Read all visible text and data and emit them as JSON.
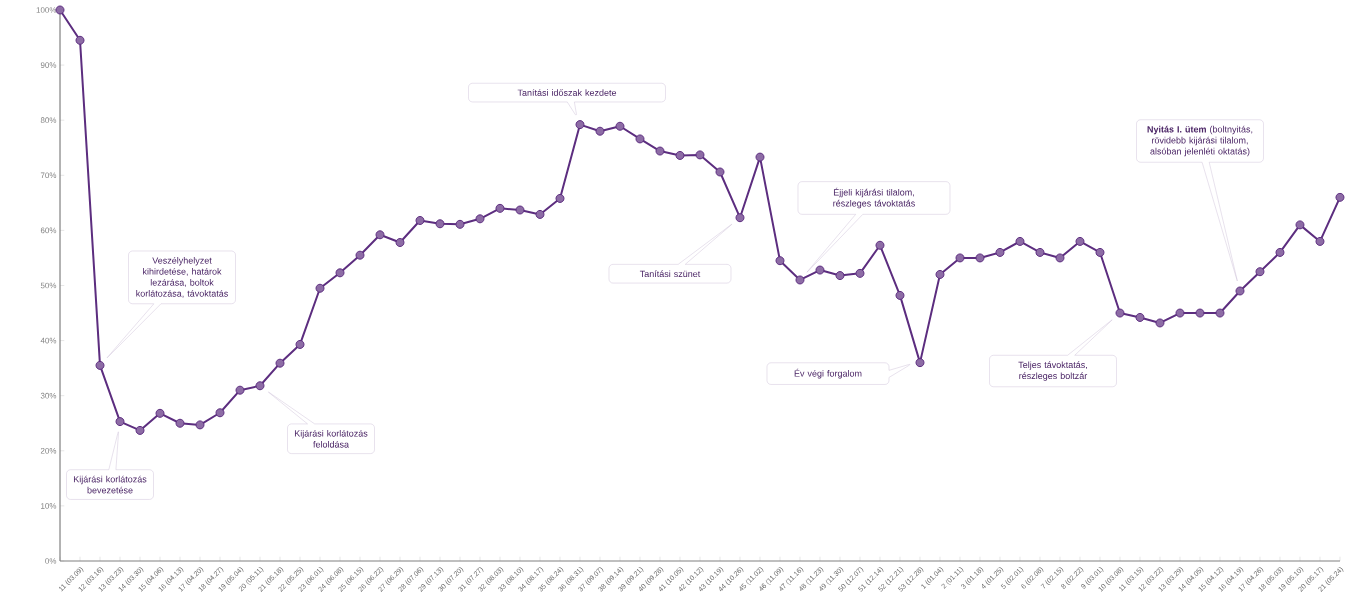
{
  "chart_data": {
    "type": "line",
    "categories": [
      null,
      "11 (03.09)",
      "12 (03.16)",
      "13 (03.23)",
      "14 (03.30)",
      "15 (04.06)",
      "16 (04.13)",
      "17 (04.20)",
      "18 (04.27)",
      "19 (05.04)",
      "20 (05.11)",
      "21 (05.18)",
      "22 (05.25)",
      "23 (06.01)",
      "24 (06.08)",
      "25 (06.15)",
      "26 (06.22)",
      "27 (06.29)",
      "28 (07.06)",
      "29 (07.13)",
      "30 (07.20)",
      "31 (07.27)",
      "32 (08.03)",
      "33 (08.10)",
      "34 (08.17)",
      "35 (08.24)",
      "36 (08.31)",
      "37 (09.07)",
      "38 (09.14)",
      "39 (09.21)",
      "40 (09.28)",
      "41 (10.05)",
      "42 (10.12)",
      "43 (10.19)",
      "44 (10.26)",
      "45 (11.02)",
      "46 (11.09)",
      "47 (11.16)",
      "48 (11.23)",
      "49 (11.30)",
      "50 (12.07)",
      "51 (12.14)",
      "52 (12.21)",
      "53 (12.28)",
      "1 (01.04)",
      "2 (01.11)",
      "3 (01.18)",
      "4 (01.25)",
      "5 (02.01)",
      "6 (02.08)",
      "7 (02.15)",
      "8 (02.22)",
      "9 (03.01)",
      "10 (03.08)",
      "11 (03.15)",
      "12 (03.22)",
      "13 (03.29)",
      "14 (04.05)",
      "15 (04.12)",
      "16 (04.19)",
      "17 (04.26)",
      "18 (05.03)",
      "19 (05.10)",
      "20 (05.17)",
      "21 (05.24)"
    ],
    "series": [
      {
        "color": "#5c2d7f",
        "values": [
          100,
          94.5,
          35.5,
          25.3,
          23.7,
          26.8,
          25,
          24.7,
          26.9,
          31,
          31.8,
          35.9,
          39.3,
          49.5,
          52.3,
          55.5,
          59.2,
          57.8,
          61.8,
          61.2,
          61.1,
          62.1,
          64,
          63.7,
          62.9,
          65.8,
          79.2,
          78,
          78.9,
          76.6,
          74.4,
          73.6,
          73.7,
          70.6,
          62.3,
          73.3,
          54.5,
          51,
          52.8,
          51.8,
          52.2,
          57.3,
          48.2,
          36,
          52,
          55,
          55,
          56,
          58,
          56,
          55,
          58,
          56,
          45,
          44.2,
          43.2,
          45,
          45,
          45,
          49,
          52.5,
          56,
          61,
          58,
          66
        ]
      }
    ],
    "ylim": [
      0,
      100
    ],
    "yticks": [
      {
        "value": 0,
        "label": "0%"
      },
      {
        "value": 10,
        "label": "10%"
      },
      {
        "value": 20,
        "label": "20%"
      },
      {
        "value": 30,
        "label": "30%"
      },
      {
        "value": 40,
        "label": "40%"
      },
      {
        "value": 50,
        "label": "50%"
      },
      {
        "value": 60,
        "label": "60%"
      },
      {
        "value": 70,
        "label": "70%"
      },
      {
        "value": 80,
        "label": "80%"
      },
      {
        "value": 90,
        "label": "90%"
      },
      {
        "value": 100,
        "label": "100%"
      }
    ],
    "marker": "circle",
    "line_style": "solid",
    "grid": false,
    "legend": false,
    "annotations": [
      "Veszélyhelyzet kihirdetése, határok lezárása, boltok korlátozása, távoktatás",
      "Kijárási korlátozás bevezetése",
      "Kijárási korlátozás feloldása",
      "Tanítási időszak kezdete",
      "Tanítási szünet",
      "Éjjeli kijárási tilalom, részleges távoktatás",
      "Év végi forgalom",
      "Teljes távoktatás, részleges boltzár",
      "**Nyitás I. ütem** (boltnyitás, rövidebb kijárási tilalom, alsóban jelenléti oktatás)"
    ]
  }
}
